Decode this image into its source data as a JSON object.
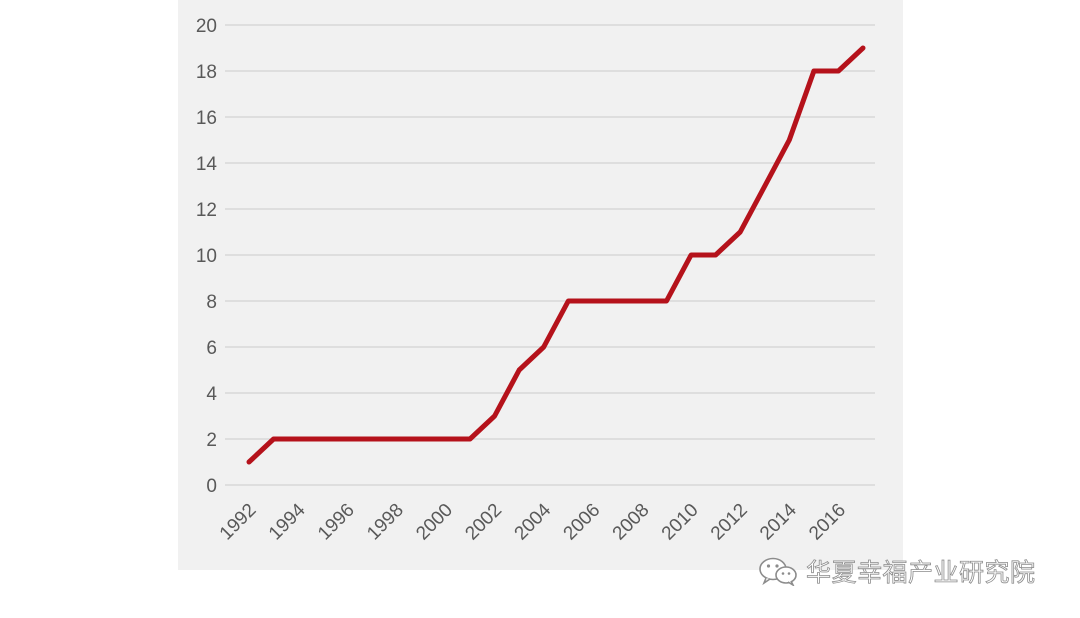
{
  "chart_data": {
    "type": "line",
    "title": "",
    "xlabel": "",
    "ylabel": "",
    "x": [
      1992,
      1993,
      1994,
      1995,
      1996,
      1997,
      1998,
      1999,
      2000,
      2001,
      2002,
      2003,
      2004,
      2005,
      2006,
      2007,
      2008,
      2009,
      2010,
      2011,
      2012,
      2013,
      2014,
      2015,
      2016,
      2017
    ],
    "x_tick_labels": [
      "1992",
      "1994",
      "1996",
      "1998",
      "2000",
      "2002",
      "2004",
      "2006",
      "2008",
      "2010",
      "2012",
      "2014",
      "2016"
    ],
    "ylim": [
      0,
      20
    ],
    "y_ticks": [
      "0",
      "2",
      "4",
      "6",
      "8",
      "10",
      "12",
      "14",
      "16",
      "18",
      "20"
    ],
    "grid": "horizontal",
    "legend": "none",
    "series": [
      {
        "color": "#b5121b",
        "values": [
          1,
          2,
          2,
          2,
          2,
          2,
          2,
          2,
          2,
          2,
          3,
          5,
          6,
          8,
          8,
          8,
          8,
          8,
          10,
          10,
          11,
          13,
          15,
          18,
          18,
          19
        ]
      }
    ]
  },
  "watermark": {
    "icon": "wechat-icon",
    "text": "华夏幸福产业研究院"
  }
}
